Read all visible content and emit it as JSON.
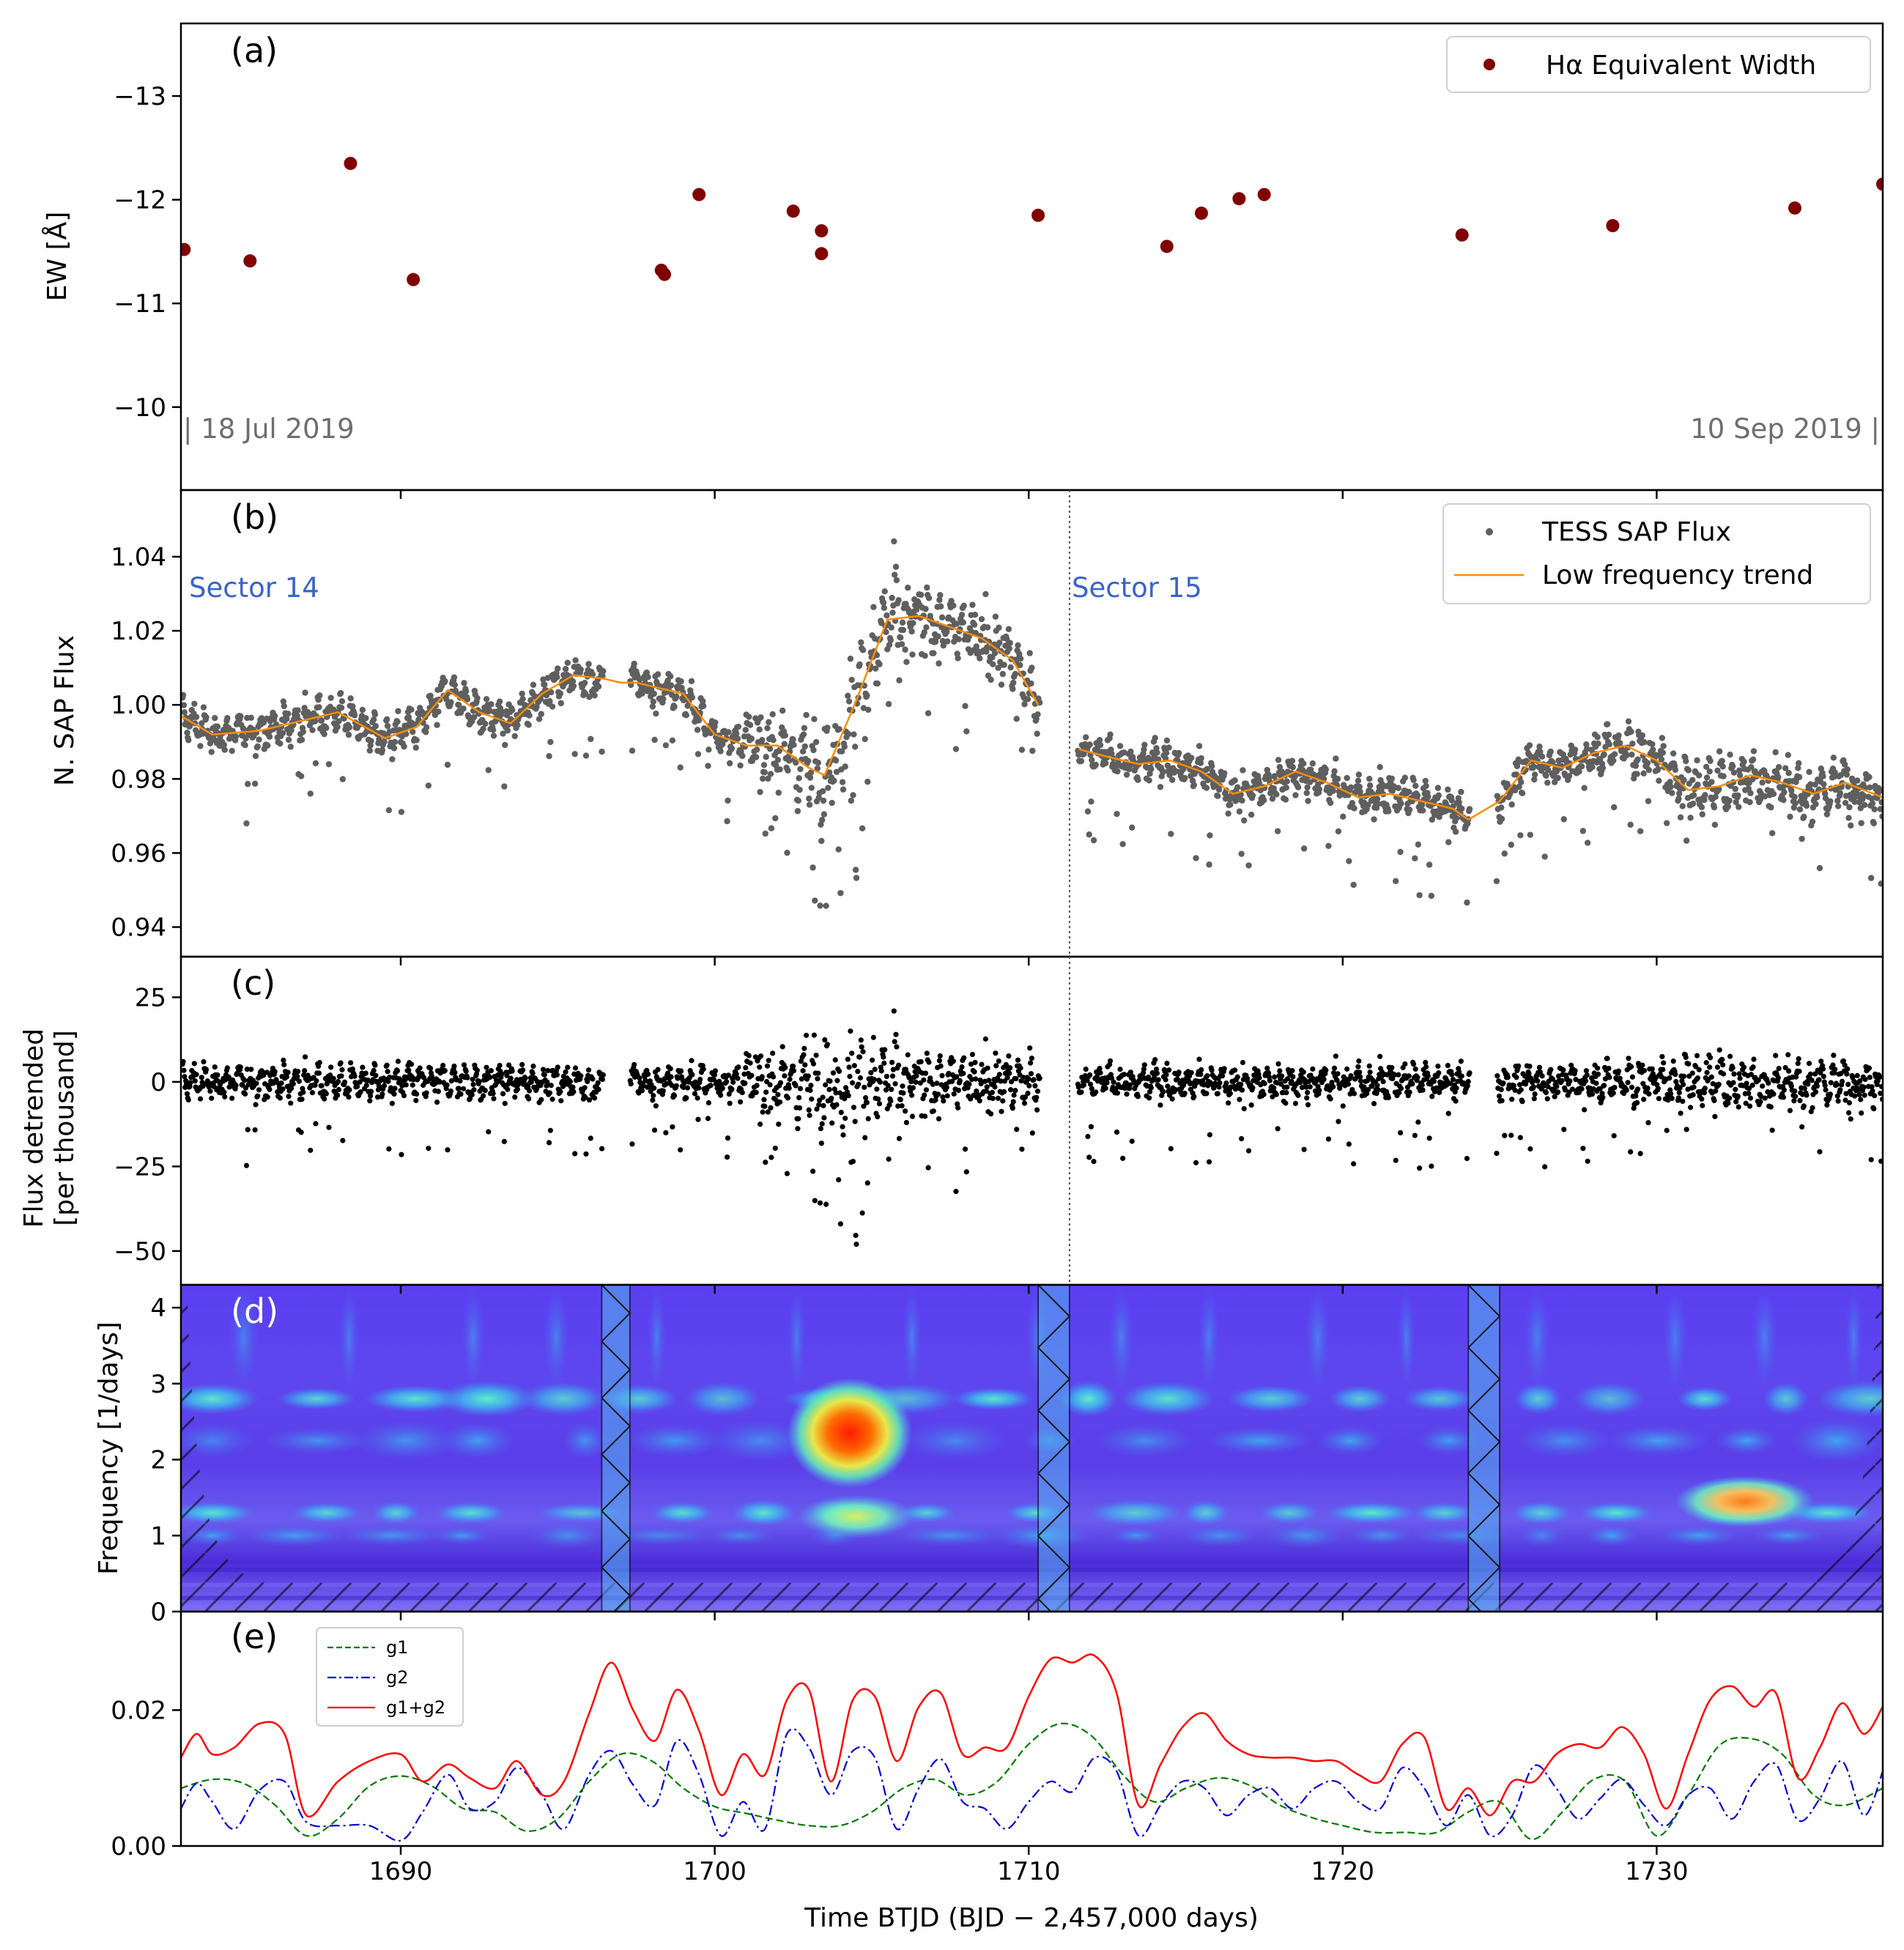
{
  "colors": {
    "ew_points": "#800000",
    "flux_points": "#5f5f5f",
    "trend_line": "#ff8c00",
    "detrended_points": "#000000",
    "sector_text": "#3a63c9",
    "date_text": "#6e6e6e",
    "g1": "#007a00",
    "g2": "#0000cc",
    "g1g2": "#ff0000"
  },
  "chart_data": [
    {
      "type": "scatter",
      "panel_label": "(a)",
      "ylabel": "EW [Å]",
      "xlim": [
        1683,
        1737.2
      ],
      "ylim": [
        -9.2,
        -13.7
      ],
      "yticks": [
        -13,
        -12,
        -11,
        -10
      ],
      "ytick_labels": [
        "−13",
        "−12",
        "−11",
        "−10"
      ],
      "annotations": [
        "| 18 Jul 2019",
        "10 Sep 2019 |"
      ],
      "legend": {
        "label": "Hα Equivalent Width",
        "position": "top-right"
      },
      "series": [
        {
          "name": "Hα Equivalent Width",
          "x": [
            1683.1,
            1685.2,
            1688.4,
            1690.4,
            1698.3,
            1698.4,
            1699.5,
            1702.5,
            1703.4,
            1703.4,
            1710.3,
            1714.4,
            1715.5,
            1716.7,
            1717.5,
            1723.8,
            1728.6,
            1734.4,
            1737.2
          ],
          "y": [
            -11.52,
            -11.41,
            -12.35,
            -11.23,
            -11.32,
            -11.28,
            -12.05,
            -11.89,
            -11.7,
            -11.48,
            -11.85,
            -11.55,
            -11.87,
            -12.01,
            -12.05,
            -11.66,
            -11.75,
            -11.92,
            -12.15
          ]
        }
      ]
    },
    {
      "type": "scatter",
      "panel_label": "(b)",
      "ylabel": "N. SAP Flux",
      "xlim": [
        1683,
        1737.2
      ],
      "ylim": [
        0.932,
        1.058
      ],
      "yticks": [
        0.94,
        0.96,
        0.98,
        1.0,
        1.02,
        1.04
      ],
      "ytick_labels": [
        "0.94",
        "0.96",
        "0.98",
        "1.00",
        "1.02",
        "1.04"
      ],
      "annotations": [
        "Sector 14",
        "Sector 15"
      ],
      "sector_boundary_x": 1711.3,
      "legend": {
        "position": "top-right"
      },
      "series": [
        {
          "name": "TESS SAP Flux",
          "style": "points"
        },
        {
          "name": "Low frequency trend",
          "style": "line",
          "x": [
            1683.0,
            1684.0,
            1685.5,
            1687.0,
            1688.0,
            1689.5,
            1690.5,
            1691.5,
            1692.5,
            1693.5,
            1694.5,
            1695.5,
            1696.5,
            1697.0,
            1697.5,
            1699.0,
            1700.0,
            1701.0,
            1702.0,
            1703.0,
            1703.5,
            1704.5,
            1705.5,
            1706.5,
            1707.5,
            1708.5,
            1709.5,
            1710.3,
            1711.6,
            1712.5,
            1713.5,
            1714.5,
            1715.5,
            1716.5,
            1717.5,
            1718.5,
            1719.5,
            1720.5,
            1721.5,
            1722.5,
            1723.5,
            1724.0,
            1725.0,
            1726.0,
            1727.0,
            1728.0,
            1729.0,
            1730.0,
            1731.0,
            1732.0,
            1733.0,
            1734.0,
            1735.0,
            1736.0,
            1737.2
          ],
          "y": [
            0.997,
            0.992,
            0.993,
            0.996,
            0.998,
            0.991,
            0.994,
            1.004,
            0.998,
            0.995,
            1.003,
            1.008,
            1.007,
            1.006,
            1.006,
            1.003,
            0.992,
            0.989,
            0.989,
            0.983,
            0.981,
            1.001,
            1.023,
            1.024,
            1.021,
            1.018,
            1.012,
            1.0,
            0.988,
            0.986,
            0.984,
            0.985,
            0.982,
            0.976,
            0.978,
            0.982,
            0.979,
            0.975,
            0.976,
            0.974,
            0.972,
            0.969,
            0.974,
            0.985,
            0.983,
            0.987,
            0.989,
            0.985,
            0.977,
            0.978,
            0.981,
            0.979,
            0.976,
            0.979,
            0.975
          ]
        }
      ]
    },
    {
      "type": "scatter",
      "panel_label": "(c)",
      "ylabel": [
        "Flux detrended",
        "[per thousand]"
      ],
      "xlim": [
        1683,
        1737.2
      ],
      "ylim": [
        -60,
        37
      ],
      "yticks": [
        -50,
        -25,
        0,
        25
      ],
      "ytick_labels": [
        "−50",
        "−25",
        "0",
        "25"
      ],
      "series": [
        {
          "name": "Flux detrended",
          "style": "points"
        }
      ]
    },
    {
      "type": "heatmap",
      "panel_label": "(d)",
      "ylabel": "Frequency [1/days]",
      "xlim": [
        1683,
        1737.2
      ],
      "ylim": [
        0,
        4.3
      ],
      "yticks": [
        0,
        1,
        2,
        3,
        4
      ],
      "ytick_labels": [
        "0",
        "1",
        "2",
        "3",
        "4"
      ],
      "gap_intervals": [
        [
          1696.4,
          1697.3
        ],
        [
          1710.3,
          1711.3
        ],
        [
          1724.0,
          1725.0
        ]
      ],
      "hotspots": [
        {
          "x": 1704.3,
          "y": 2.35,
          "level": 1.0
        },
        {
          "x": 1732.8,
          "y": 1.45,
          "level": 0.75
        },
        {
          "x": 1704.5,
          "y": 1.25,
          "level": 0.6
        }
      ]
    },
    {
      "type": "line",
      "panel_label": "(e)",
      "xlabel": "Time BTJD (BJD − 2,457,000 days)",
      "xlim": [
        1683,
        1737.2
      ],
      "xticks": [
        1690,
        1700,
        1710,
        1720,
        1730
      ],
      "xtick_labels": [
        "1690",
        "1700",
        "1710",
        "1720",
        "1730"
      ],
      "ylim": [
        0,
        0.0345
      ],
      "yticks": [
        0.0,
        0.02
      ],
      "ytick_labels": [
        "0.00",
        "0.02"
      ],
      "legend": {
        "position": "top-left"
      },
      "series": [
        {
          "name": "g1",
          "style": "dashed",
          "x": [
            1683,
            1684,
            1685,
            1686,
            1687,
            1688,
            1689,
            1690,
            1691,
            1692,
            1693,
            1694,
            1695,
            1696,
            1697,
            1698,
            1699,
            1700,
            1701,
            1702,
            1703,
            1704,
            1705,
            1706,
            1707,
            1708,
            1709,
            1710,
            1711,
            1712,
            1713,
            1714,
            1715,
            1716,
            1717,
            1718,
            1719,
            1720,
            1721,
            1722,
            1723,
            1724,
            1725,
            1726,
            1727,
            1728,
            1729,
            1730,
            1731,
            1732,
            1733,
            1734,
            1735,
            1736,
            1737.2
          ],
          "y": [
            0.0085,
            0.0098,
            0.0092,
            0.006,
            0.0015,
            0.004,
            0.0088,
            0.0103,
            0.0088,
            0.0055,
            0.005,
            0.0022,
            0.004,
            0.0095,
            0.0135,
            0.0125,
            0.0085,
            0.0058,
            0.0048,
            0.0038,
            0.003,
            0.003,
            0.005,
            0.0085,
            0.0098,
            0.0075,
            0.0095,
            0.015,
            0.018,
            0.0162,
            0.0105,
            0.0065,
            0.0085,
            0.01,
            0.009,
            0.006,
            0.0042,
            0.003,
            0.002,
            0.002,
            0.002,
            0.005,
            0.0065,
            0.001,
            0.005,
            0.0098,
            0.0095,
            0.0015,
            0.0075,
            0.0148,
            0.0158,
            0.0135,
            0.0075,
            0.006,
            0.0085
          ]
        },
        {
          "name": "g2",
          "style": "dashdot",
          "x": [
            1683,
            1683.5,
            1684,
            1684.7,
            1685.5,
            1686.3,
            1687,
            1688,
            1689,
            1690,
            1690.7,
            1691.5,
            1692.2,
            1693,
            1693.7,
            1694.5,
            1695.2,
            1696,
            1696.7,
            1697.4,
            1698.1,
            1698.8,
            1699.5,
            1700.2,
            1700.9,
            1701.6,
            1702.3,
            1703,
            1703.7,
            1704.4,
            1705.1,
            1705.8,
            1706.5,
            1707.2,
            1707.9,
            1708.6,
            1709.3,
            1710,
            1710.7,
            1711.4,
            1712.1,
            1712.8,
            1713.5,
            1714.2,
            1714.9,
            1715.6,
            1716.3,
            1717,
            1717.7,
            1718.4,
            1719.1,
            1719.8,
            1720.5,
            1721.2,
            1721.9,
            1722.6,
            1723.3,
            1724,
            1724.7,
            1725.4,
            1726.1,
            1726.8,
            1727.5,
            1728.2,
            1728.9,
            1729.6,
            1730.3,
            1731,
            1731.7,
            1732.4,
            1733.1,
            1733.8,
            1734.5,
            1735.2,
            1735.9,
            1736.6,
            1737.2
          ],
          "y": [
            0.0055,
            0.0092,
            0.0065,
            0.0025,
            0.0082,
            0.0095,
            0.0035,
            0.003,
            0.003,
            0.0008,
            0.005,
            0.0105,
            0.0055,
            0.0065,
            0.0115,
            0.0075,
            0.0025,
            0.0105,
            0.014,
            0.009,
            0.006,
            0.0155,
            0.0105,
            0.0015,
            0.0065,
            0.0025,
            0.0165,
            0.0145,
            0.0075,
            0.014,
            0.013,
            0.0025,
            0.0085,
            0.0128,
            0.0065,
            0.0055,
            0.0025,
            0.0065,
            0.0095,
            0.008,
            0.013,
            0.011,
            0.0015,
            0.006,
            0.0095,
            0.0085,
            0.0045,
            0.0075,
            0.0085,
            0.0055,
            0.0085,
            0.0095,
            0.0065,
            0.0055,
            0.0115,
            0.0085,
            0.003,
            0.0075,
            0.0015,
            0.0045,
            0.0118,
            0.0085,
            0.004,
            0.007,
            0.0098,
            0.006,
            0.003,
            0.0075,
            0.0085,
            0.004,
            0.0095,
            0.012,
            0.0038,
            0.007,
            0.0125,
            0.0045,
            0.011
          ]
        },
        {
          "name": "g1+g2",
          "style": "solid",
          "x": [
            1683,
            1683.5,
            1684,
            1684.7,
            1685.5,
            1686.3,
            1687,
            1688,
            1689,
            1690,
            1690.7,
            1691.5,
            1692.2,
            1693,
            1693.7,
            1694.5,
            1695.2,
            1696,
            1696.7,
            1697.4,
            1698.1,
            1698.8,
            1699.5,
            1700.2,
            1700.9,
            1701.6,
            1702.3,
            1703,
            1703.7,
            1704.4,
            1705.1,
            1705.8,
            1706.5,
            1707.2,
            1707.9,
            1708.6,
            1709.3,
            1710,
            1710.7,
            1711.4,
            1712.1,
            1712.8,
            1713.5,
            1714.2,
            1714.9,
            1715.6,
            1716.3,
            1717,
            1717.7,
            1718.4,
            1719.1,
            1719.8,
            1720.5,
            1721.2,
            1721.9,
            1722.6,
            1723.3,
            1724,
            1724.7,
            1725.4,
            1726.1,
            1726.8,
            1727.5,
            1728.2,
            1728.9,
            1729.6,
            1730.3,
            1731,
            1731.7,
            1732.4,
            1733.1,
            1733.8,
            1734.5,
            1735.2,
            1735.9,
            1736.6,
            1737.2
          ],
          "y": [
            0.013,
            0.0165,
            0.0135,
            0.0145,
            0.018,
            0.0165,
            0.0045,
            0.0095,
            0.0125,
            0.0135,
            0.0095,
            0.012,
            0.01,
            0.0085,
            0.0125,
            0.0075,
            0.0095,
            0.0195,
            0.027,
            0.02,
            0.0155,
            0.023,
            0.017,
            0.0075,
            0.0135,
            0.0105,
            0.0215,
            0.023,
            0.0095,
            0.0215,
            0.022,
            0.0125,
            0.0205,
            0.0225,
            0.0135,
            0.0145,
            0.0145,
            0.022,
            0.0275,
            0.027,
            0.028,
            0.0225,
            0.006,
            0.012,
            0.0175,
            0.0195,
            0.0155,
            0.0135,
            0.013,
            0.013,
            0.0125,
            0.0125,
            0.0105,
            0.0095,
            0.015,
            0.016,
            0.0055,
            0.0085,
            0.0045,
            0.0095,
            0.0095,
            0.0135,
            0.015,
            0.0145,
            0.0175,
            0.0135,
            0.0055,
            0.0135,
            0.0215,
            0.0235,
            0.0205,
            0.0225,
            0.01,
            0.0145,
            0.021,
            0.0165,
            0.0205
          ]
        }
      ]
    }
  ]
}
